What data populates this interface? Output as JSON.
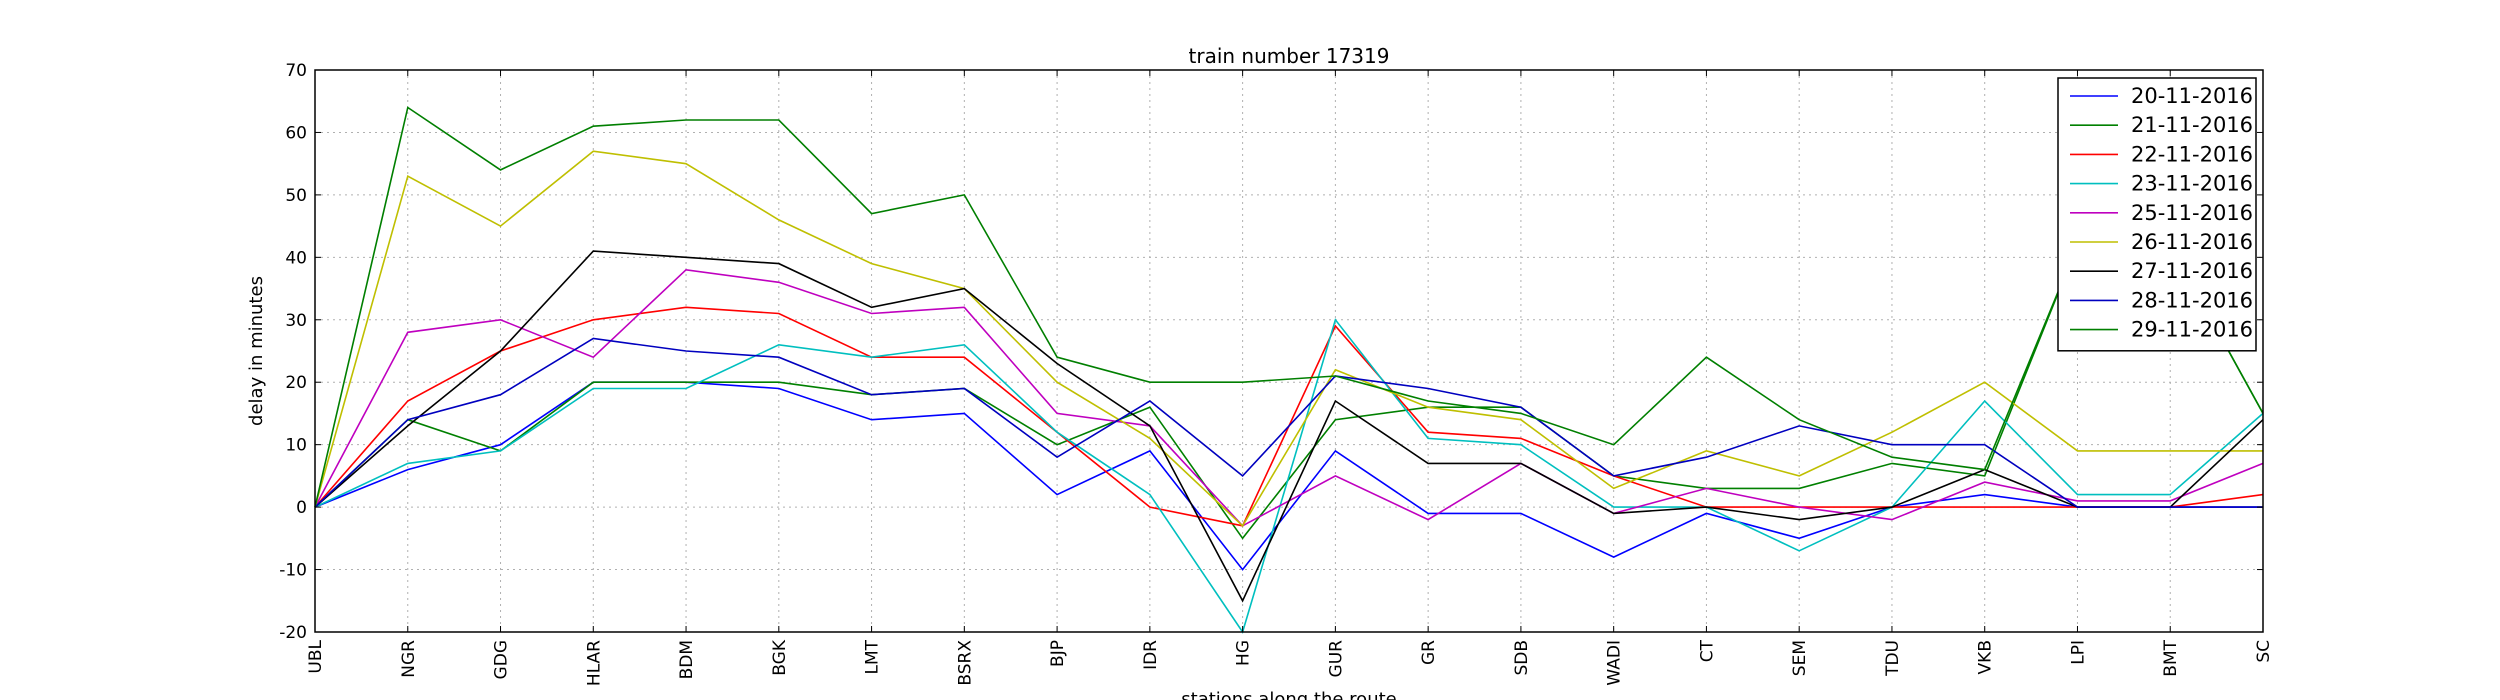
{
  "chart_data": {
    "type": "line",
    "title": "train number 17319",
    "xlabel": "stations along the route",
    "ylabel": "delay in minutes",
    "ylim": [
      -20,
      70
    ],
    "yticks": [
      -20,
      -10,
      0,
      10,
      20,
      30,
      40,
      50,
      60,
      70
    ],
    "grid": true,
    "legend_position": "top-right",
    "categories": [
      "UBL",
      "NGR",
      "GDG",
      "HLAR",
      "BDM",
      "BGK",
      "LMT",
      "BSRX",
      "BJP",
      "IDR",
      "HG",
      "GUR",
      "GR",
      "SDB",
      "WADI",
      "CT",
      "SEM",
      "TDU",
      "VKB",
      "LPI",
      "BMT",
      "SC"
    ],
    "series": [
      {
        "name": "20-11-2016",
        "color": "#0000ff",
        "values": [
          0,
          6,
          10,
          20,
          20,
          19,
          14,
          15,
          2,
          9,
          -10,
          9,
          -1,
          -1,
          -8,
          -1,
          -5,
          0,
          2,
          0,
          0,
          0
        ]
      },
      {
        "name": "21-11-2016",
        "color": "#008000",
        "values": [
          0,
          14,
          9,
          20,
          20,
          20,
          18,
          19,
          10,
          16,
          -5,
          14,
          16,
          16,
          5,
          3,
          3,
          7,
          5,
          42,
          42,
          15
        ]
      },
      {
        "name": "22-11-2016",
        "color": "#ff0000",
        "values": [
          0,
          17,
          25,
          30,
          32,
          31,
          24,
          24,
          12,
          0,
          -3,
          29,
          12,
          11,
          5,
          0,
          0,
          0,
          0,
          0,
          0,
          2
        ]
      },
      {
        "name": "23-11-2016",
        "color": "#00bfbf",
        "values": [
          0,
          7,
          9,
          19,
          19,
          26,
          24,
          26,
          12,
          2,
          -20,
          30,
          11,
          10,
          0,
          0,
          -7,
          0,
          17,
          2,
          2,
          15
        ]
      },
      {
        "name": "25-11-2016",
        "color": "#bf00bf",
        "values": [
          0,
          28,
          30,
          24,
          38,
          36,
          31,
          32,
          15,
          13,
          -3,
          5,
          -2,
          7,
          -1,
          3,
          0,
          -2,
          4,
          1,
          1,
          7
        ]
      },
      {
        "name": "26-11-2016",
        "color": "#bfbf00",
        "values": [
          0,
          53,
          45,
          57,
          55,
          46,
          39,
          35,
          20,
          11,
          -3,
          22,
          16,
          14,
          3,
          9,
          5,
          12,
          20,
          9,
          9,
          9
        ]
      },
      {
        "name": "27-11-2016",
        "color": "#000000",
        "values": [
          0,
          13,
          25,
          41,
          40,
          39,
          32,
          35,
          23,
          13,
          -15,
          17,
          7,
          7,
          -1,
          0,
          -2,
          0,
          6,
          0,
          0,
          14
        ]
      },
      {
        "name": "28-11-2016",
        "color": "#0000bf",
        "values": [
          0,
          14,
          18,
          27,
          25,
          24,
          18,
          19,
          8,
          17,
          5,
          21,
          19,
          16,
          5,
          8,
          13,
          10,
          10,
          0,
          0,
          0
        ]
      },
      {
        "name": "29-11-2016",
        "color": "#007f00",
        "values": [
          0,
          64,
          54,
          61,
          62,
          62,
          47,
          50,
          24,
          20,
          20,
          21,
          17,
          15,
          10,
          24,
          14,
          8,
          6,
          42,
          42,
          15
        ]
      }
    ]
  }
}
